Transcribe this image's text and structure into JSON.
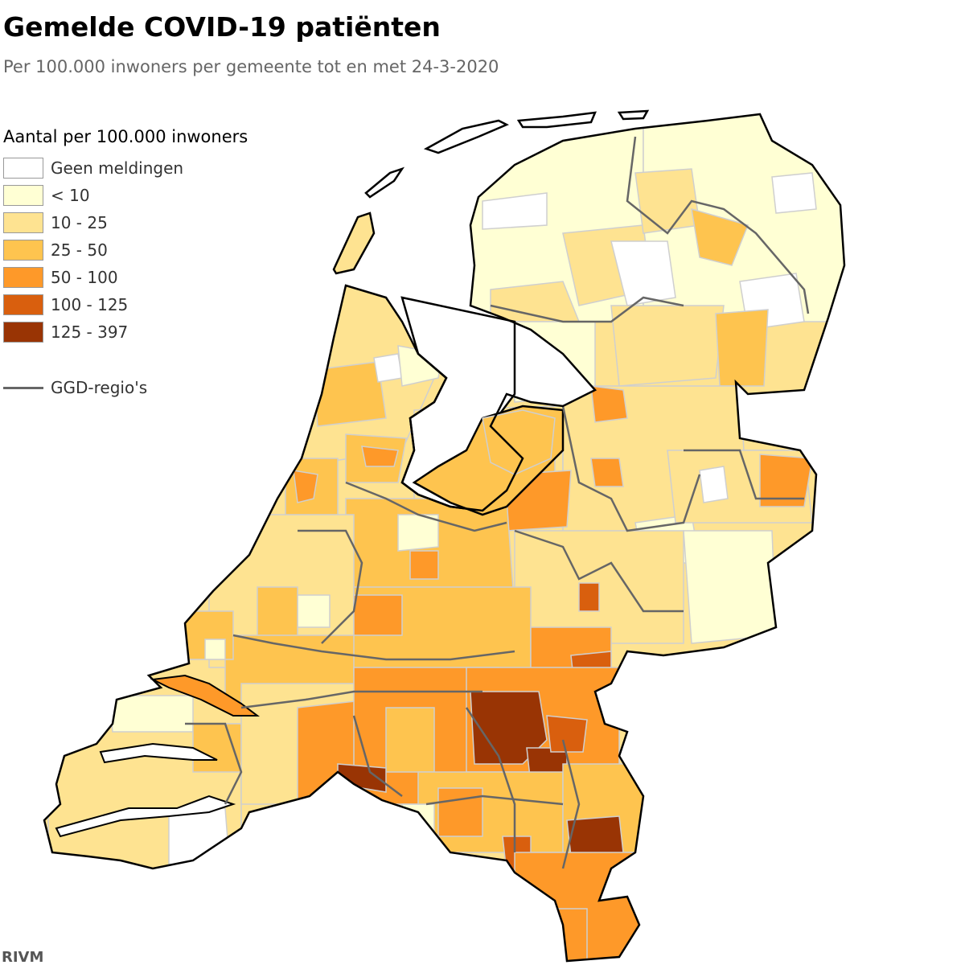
{
  "title": "Gemelde COVID-19 patiënten",
  "subtitle": "Per 100.000 inwoners per gemeente tot en met 24-3-2020",
  "legend": {
    "title": "Aantal per 100.000 inwoners",
    "classes": [
      {
        "label": "Geen meldingen",
        "color": "#ffffff"
      },
      {
        "label": "< 10",
        "color": "#ffffd4"
      },
      {
        "label": "10 - 25",
        "color": "#fee391"
      },
      {
        "label": "25 - 50",
        "color": "#fec44f"
      },
      {
        "label": "50 - 100",
        "color": "#fe9929"
      },
      {
        "label": "100 - 125",
        "color": "#d95f0e"
      },
      {
        "label": "125 - 397",
        "color": "#993404"
      }
    ],
    "boundary_label": "GGD-regio's"
  },
  "credit": "RIVM"
}
